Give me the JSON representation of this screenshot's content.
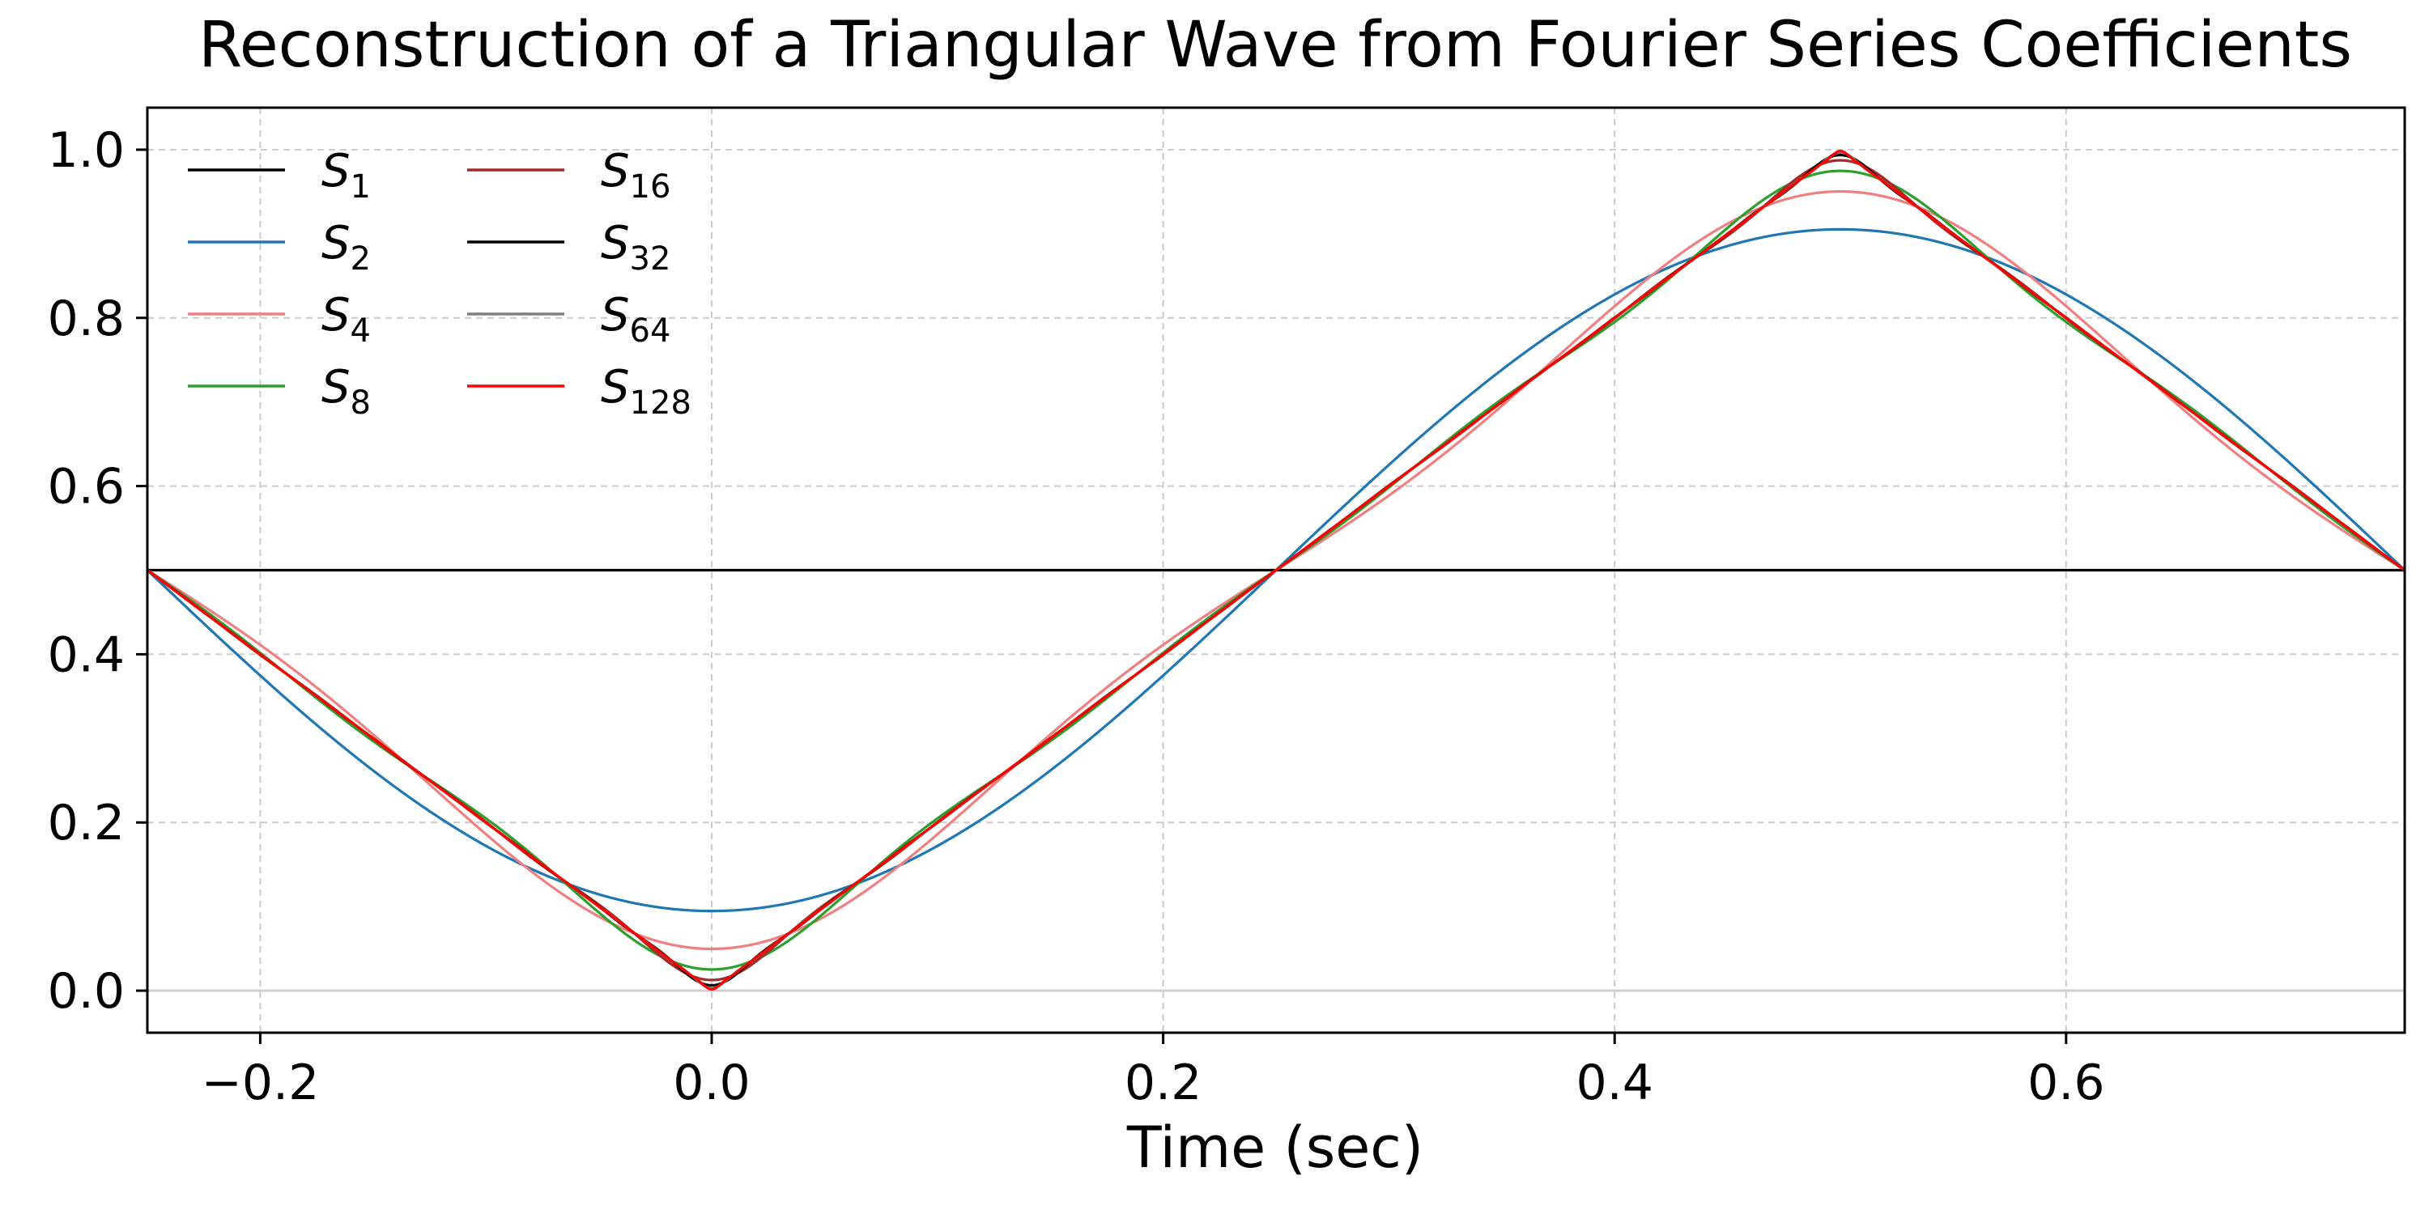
{
  "chart_data": {
    "type": "line",
    "title": "Reconstruction of a Triangular Wave from Fourier Series Coefficients",
    "xlabel": "Time (sec)",
    "ylabel": "",
    "xlim": [
      -0.25,
      0.75
    ],
    "ylim": [
      -0.05,
      1.05
    ],
    "x_ticks": [
      -0.2,
      0.0,
      0.2,
      0.4,
      0.6
    ],
    "x_tick_labels": [
      "−0.2",
      "0.0",
      "0.2",
      "0.4",
      "0.6"
    ],
    "y_ticks": [
      0.0,
      0.2,
      0.4,
      0.6,
      0.8,
      1.0
    ],
    "y_tick_labels": [
      "0.0",
      "0.2",
      "0.4",
      "0.6",
      "0.8",
      "1.0"
    ],
    "grid": true,
    "grid_style": "dashed",
    "zero_line": true,
    "legend_placement": "upper-left",
    "legend_columns": 2,
    "signal": {
      "description_of_target": "triangular wave",
      "period": 1.0,
      "dc_value": 0.5,
      "min_at": 0.0,
      "max_at": 0.5
    },
    "series": [
      {
        "name": "S",
        "subscript": "1",
        "harmonics": 1,
        "color": "#000000"
      },
      {
        "name": "S",
        "subscript": "2",
        "harmonics": 2,
        "color": "#1f77b4"
      },
      {
        "name": "S",
        "subscript": "4",
        "harmonics": 4,
        "color": "#f08080"
      },
      {
        "name": "S",
        "subscript": "8",
        "harmonics": 8,
        "color": "#2ca02c"
      },
      {
        "name": "S",
        "subscript": "16",
        "harmonics": 16,
        "color": "#a52a2a"
      },
      {
        "name": "S",
        "subscript": "32",
        "harmonics": 32,
        "color": "#000000"
      },
      {
        "name": "S",
        "subscript": "64",
        "harmonics": 64,
        "color": "#808080"
      },
      {
        "name": "S",
        "subscript": "128",
        "harmonics": 128,
        "color": "#ff0000"
      }
    ]
  }
}
